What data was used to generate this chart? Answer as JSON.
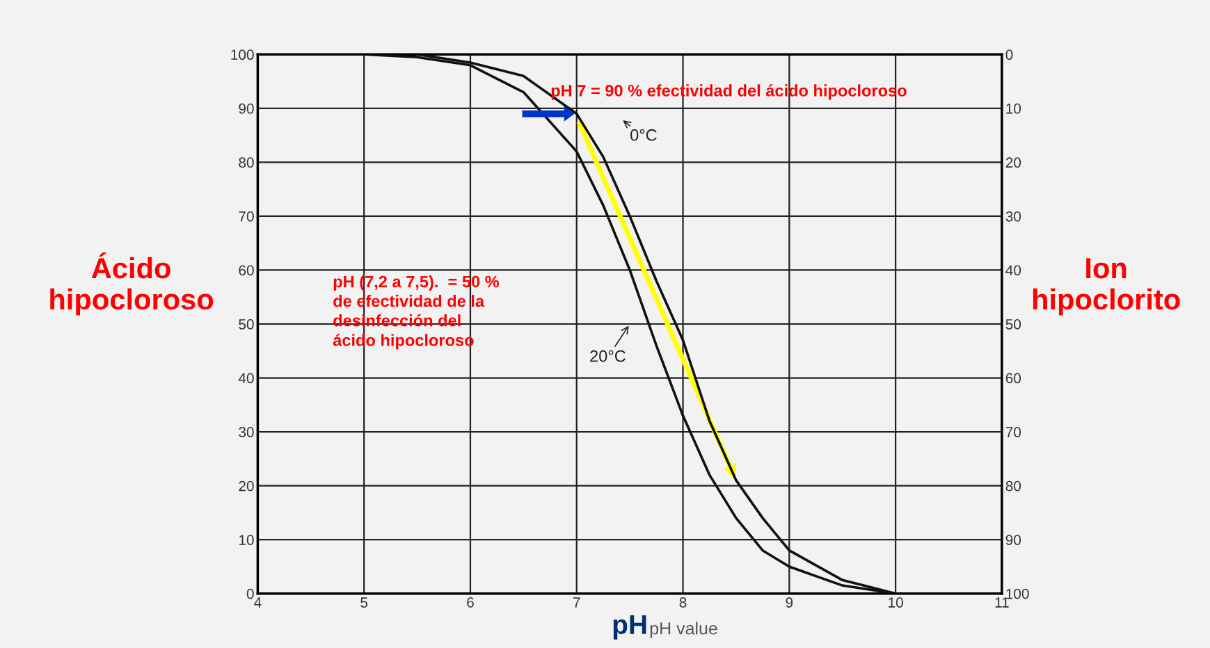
{
  "chart_data": {
    "type": "line",
    "xlabel": "pH",
    "ylabel": "Ácido\nhipocloroso",
    "y2label": "Ion\nhipoclorito",
    "x": [
      4,
      5,
      5.5,
      6,
      6.5,
      7,
      7.25,
      7.5,
      7.75,
      8,
      8.25,
      8.5,
      8.75,
      9,
      9.5,
      10
    ],
    "series": [
      {
        "name": "20°C",
        "color": "#111111",
        "values": [
          100,
          100,
          99.5,
          98,
          93,
          82,
          72,
          60,
          46,
          33,
          22,
          14,
          8,
          5,
          1.5,
          0
        ]
      },
      {
        "name": "0°C",
        "color": "#111111",
        "x": [
          5.5,
          6,
          6.5,
          7,
          7.25,
          7.5,
          7.75,
          8,
          8.25,
          8.5,
          8.75,
          9,
          9.5,
          10
        ],
        "values": [
          100,
          98.5,
          96,
          89,
          81,
          70,
          58,
          47,
          32,
          21,
          14,
          8,
          2.5,
          0
        ]
      }
    ],
    "xlim": [
      4,
      11
    ],
    "xticks": [
      4,
      5,
      6,
      7,
      8,
      9,
      10,
      11
    ],
    "ylim": [
      0,
      100
    ],
    "yticks": [
      0,
      10,
      20,
      30,
      40,
      50,
      60,
      70,
      80,
      90,
      100
    ],
    "y2lim": [
      100,
      0
    ],
    "y2ticks": [
      0,
      10,
      20,
      30,
      40,
      50,
      60,
      70,
      80,
      90,
      100
    ],
    "grid": true,
    "marker": "none",
    "line_style": "solid",
    "annotations": [
      "pH 7 = 90 % efectividad del ácido hipocloroso",
      "pH (7,2 a 7,5).  = 50 %\nde efectividad de la\ndesinfección del\nácido hipocloroso",
      "pH value"
    ]
  }
}
